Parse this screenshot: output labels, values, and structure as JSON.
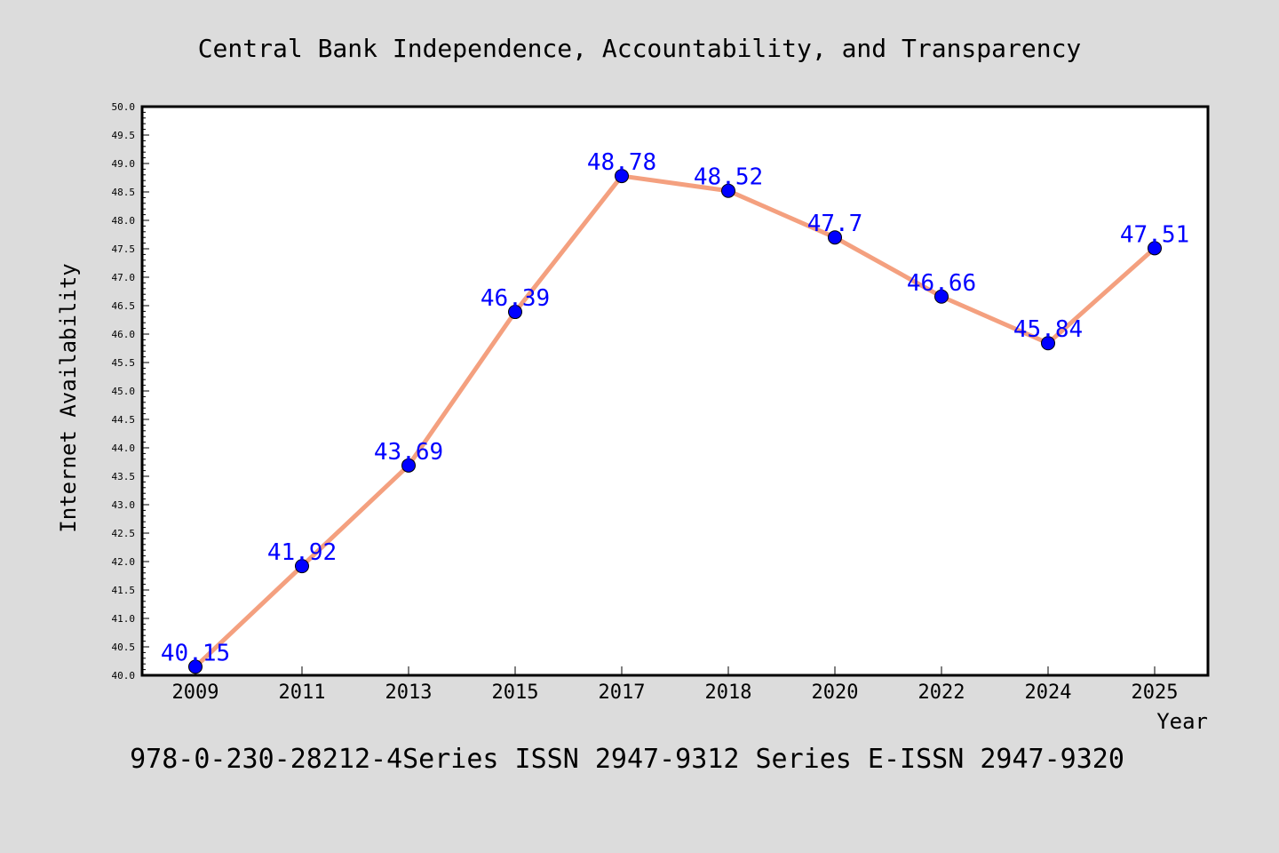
{
  "chart_data": {
    "type": "line",
    "title": "Central Bank Independence, Accountability, and Transparency",
    "xlabel": "Year",
    "ylabel": "Internet Availability",
    "footer": "978-0-230-28212-4Series ISSN 2947-9312 Series E-ISSN 2947-9320",
    "categories": [
      "2009",
      "2011",
      "2013",
      "2015",
      "2017",
      "2018",
      "2020",
      "2022",
      "2024",
      "2025"
    ],
    "series": [
      {
        "values": [
          40.15,
          41.92,
          43.69,
          46.39,
          48.78,
          48.52,
          47.7,
          46.66,
          45.84,
          47.51
        ],
        "labels": [
          "40.15",
          "41.92",
          "43.69",
          "46.39",
          "48.78",
          "48.52",
          "47.7",
          "46.66",
          "45.84",
          "47.51"
        ]
      }
    ],
    "ylim": [
      40.0,
      50.0
    ],
    "yticks": [
      "40.0",
      "40.5",
      "41.0",
      "41.5",
      "42.0",
      "42.5",
      "43.0",
      "43.5",
      "44.0",
      "44.5",
      "45.0",
      "45.5",
      "46.0",
      "46.5",
      "47.0",
      "47.5",
      "48.0",
      "48.5",
      "49.0",
      "49.5",
      "50.0"
    ],
    "grid": false,
    "colors": {
      "background": "#dcdcdc",
      "plot_area": "#ffffff",
      "line": "#f4a07f",
      "marker": "#0000ff",
      "data_label": "#0000ff",
      "text": "#000000"
    }
  }
}
